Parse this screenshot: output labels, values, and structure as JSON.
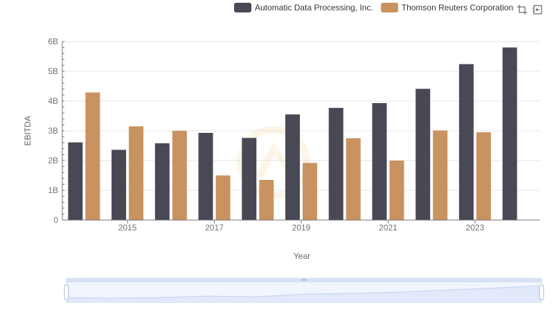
{
  "toolbar": {
    "zoom_icon": "zoom-select-icon",
    "reset_icon": "zoom-reset-icon"
  },
  "colors": {
    "adp": "#494855",
    "tri": "#c89360",
    "grid": "#e6e6e6",
    "axis": "#6e7079"
  },
  "chart_data": {
    "type": "bar",
    "xlabel": "Year",
    "ylabel": "EBITDA",
    "ylim": [
      0,
      6
    ],
    "y_ticks": [
      "0",
      "1B",
      "2B",
      "3B",
      "4B",
      "5B",
      "6B"
    ],
    "x_tick_labels": [
      "2015",
      "2017",
      "2019",
      "2021",
      "2023"
    ],
    "categories": [
      "2014",
      "2015",
      "2016",
      "2017",
      "2018",
      "2019",
      "2020",
      "2021",
      "2022",
      "2023",
      "2024"
    ],
    "series": [
      {
        "name": "Automatic Data Processing, Inc.",
        "color": "#494855",
        "values": [
          2.61,
          2.36,
          2.58,
          2.93,
          2.76,
          3.55,
          3.77,
          3.93,
          4.41,
          5.24,
          5.8
        ]
      },
      {
        "name": "Thomson Reuters Corporation",
        "color": "#c89360",
        "values": [
          4.29,
          3.15,
          3.0,
          1.5,
          1.35,
          1.92,
          2.75,
          2.0,
          3.01,
          2.95,
          null
        ]
      }
    ],
    "legend_position": "top-right",
    "grid": true,
    "datazoom": true
  }
}
